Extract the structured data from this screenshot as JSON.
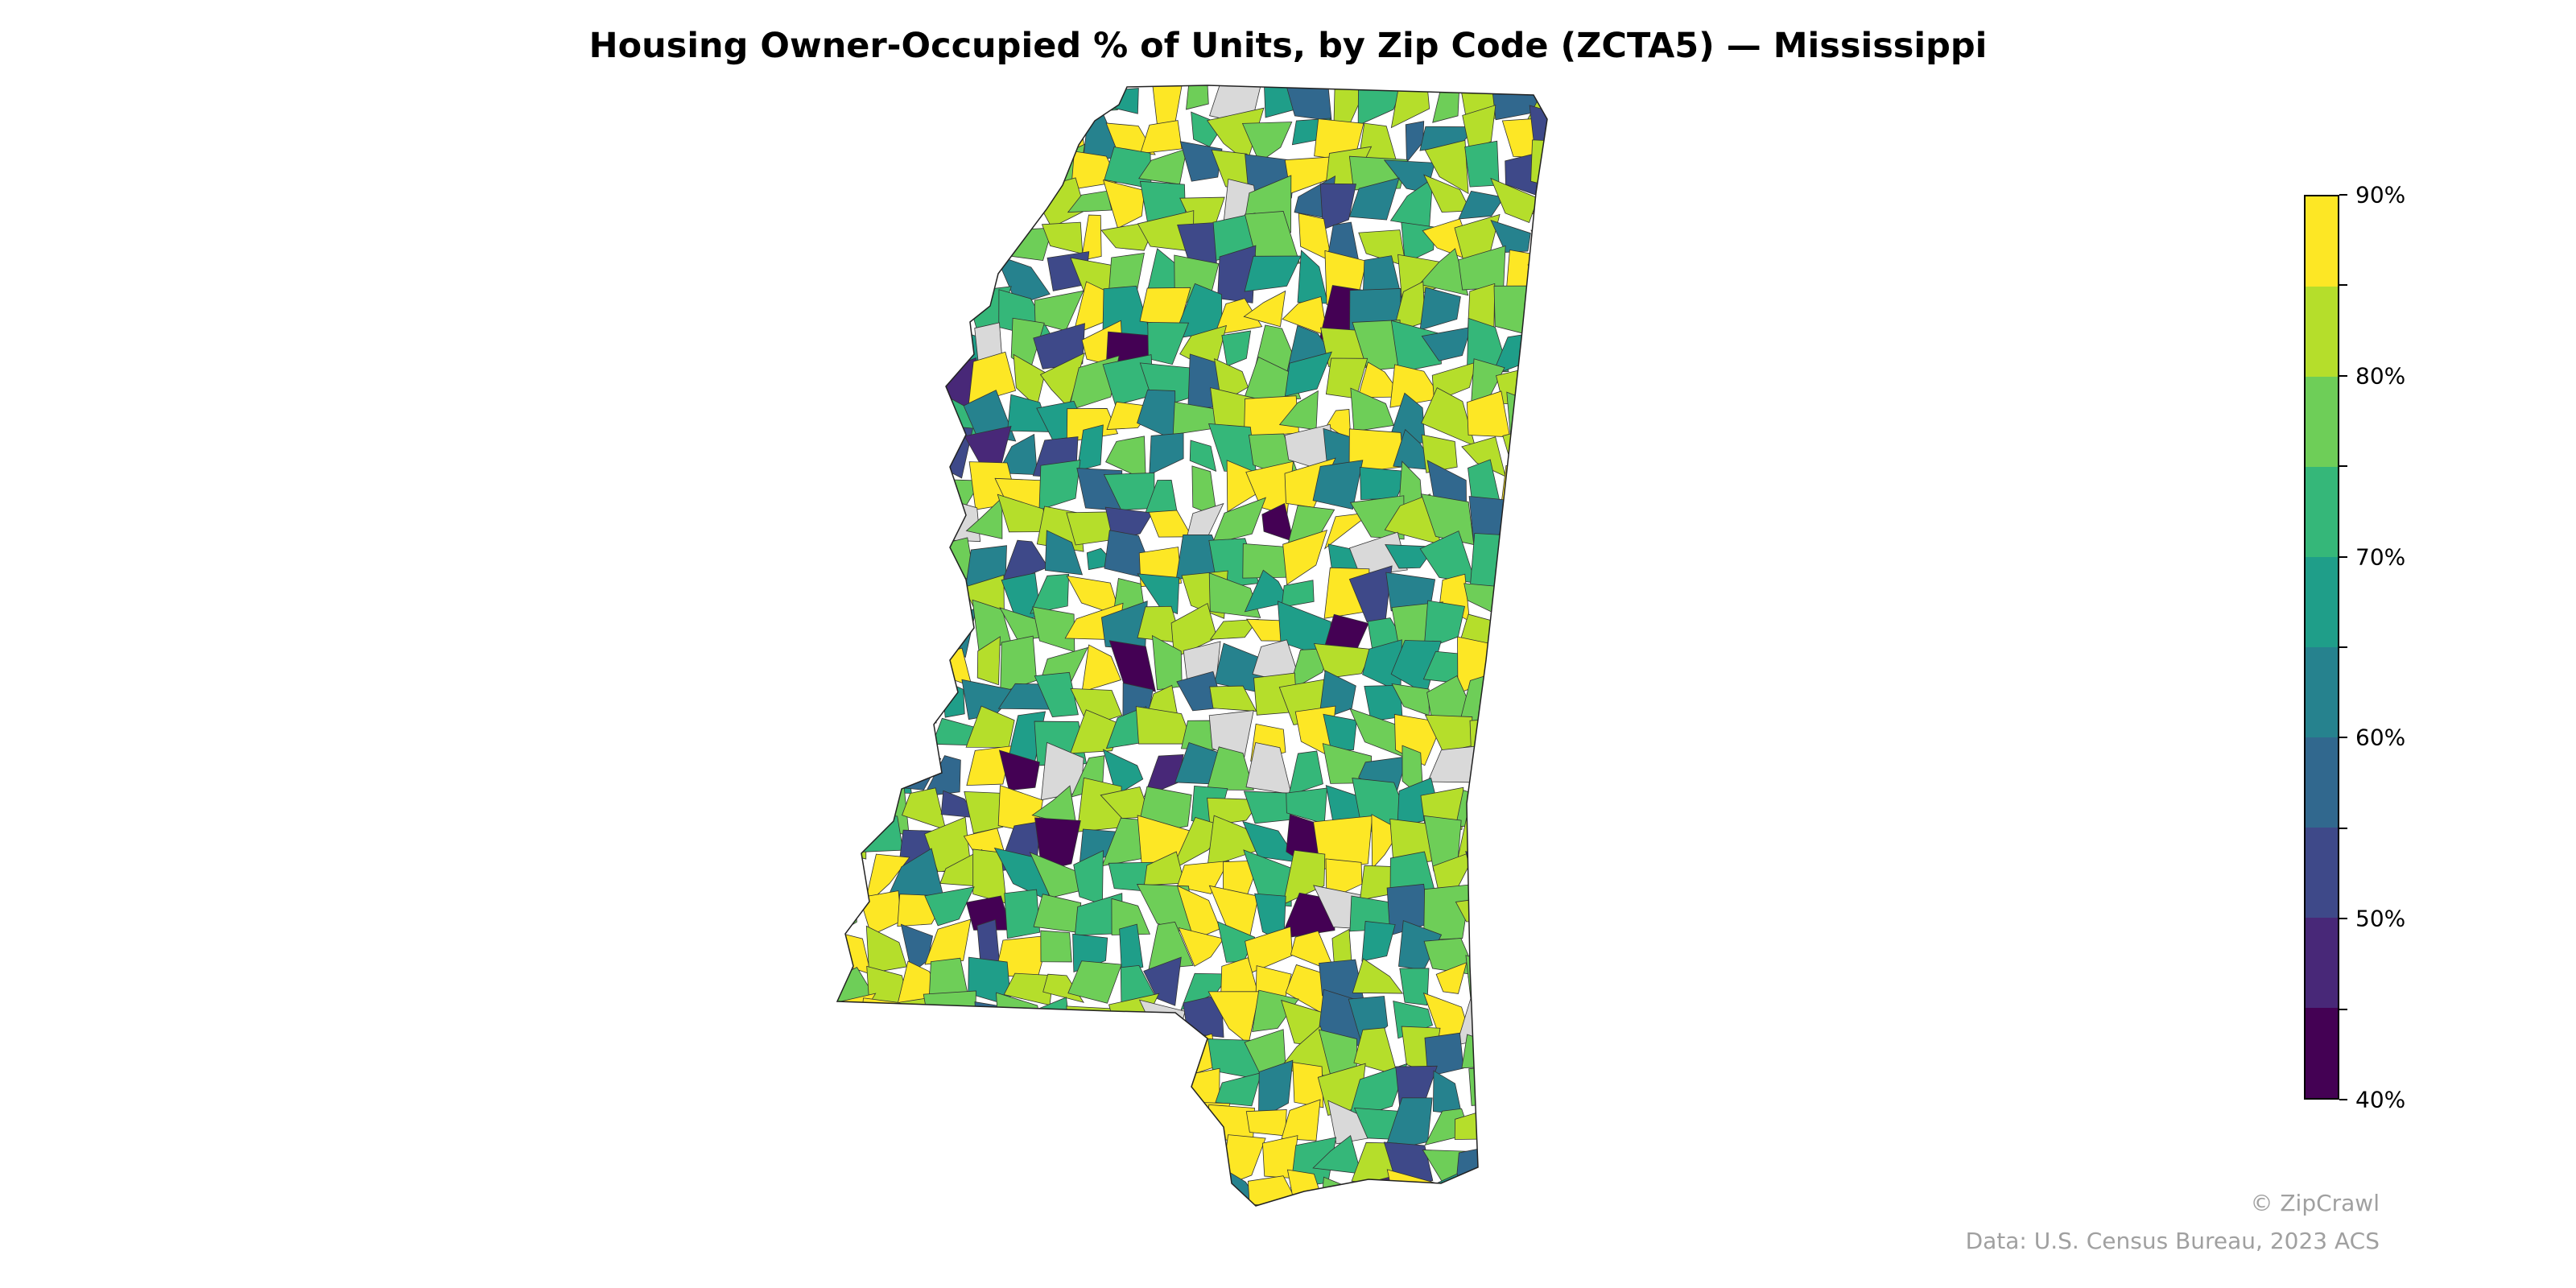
{
  "title": "Housing Owner-Occupied % of Units, by Zip Code (ZCTA5) — Mississippi",
  "colorbar": {
    "min": 40,
    "max": 90,
    "bins": [
      40,
      45,
      50,
      55,
      60,
      65,
      70,
      75,
      80,
      85,
      90
    ],
    "colors": [
      "#440154",
      "#482878",
      "#3e4989",
      "#31688e",
      "#26828e",
      "#1f9e89",
      "#35b779",
      "#6ece58",
      "#b5de2b",
      "#fde725"
    ],
    "tick_labels": [
      "40%",
      "50%",
      "60%",
      "70%",
      "80%",
      "90%"
    ],
    "missing_color": "#d9d9d9"
  },
  "footer": {
    "credit": "© ZipCrawl",
    "source": "Data: U.S. Census Bureau, 2023 ACS"
  }
}
